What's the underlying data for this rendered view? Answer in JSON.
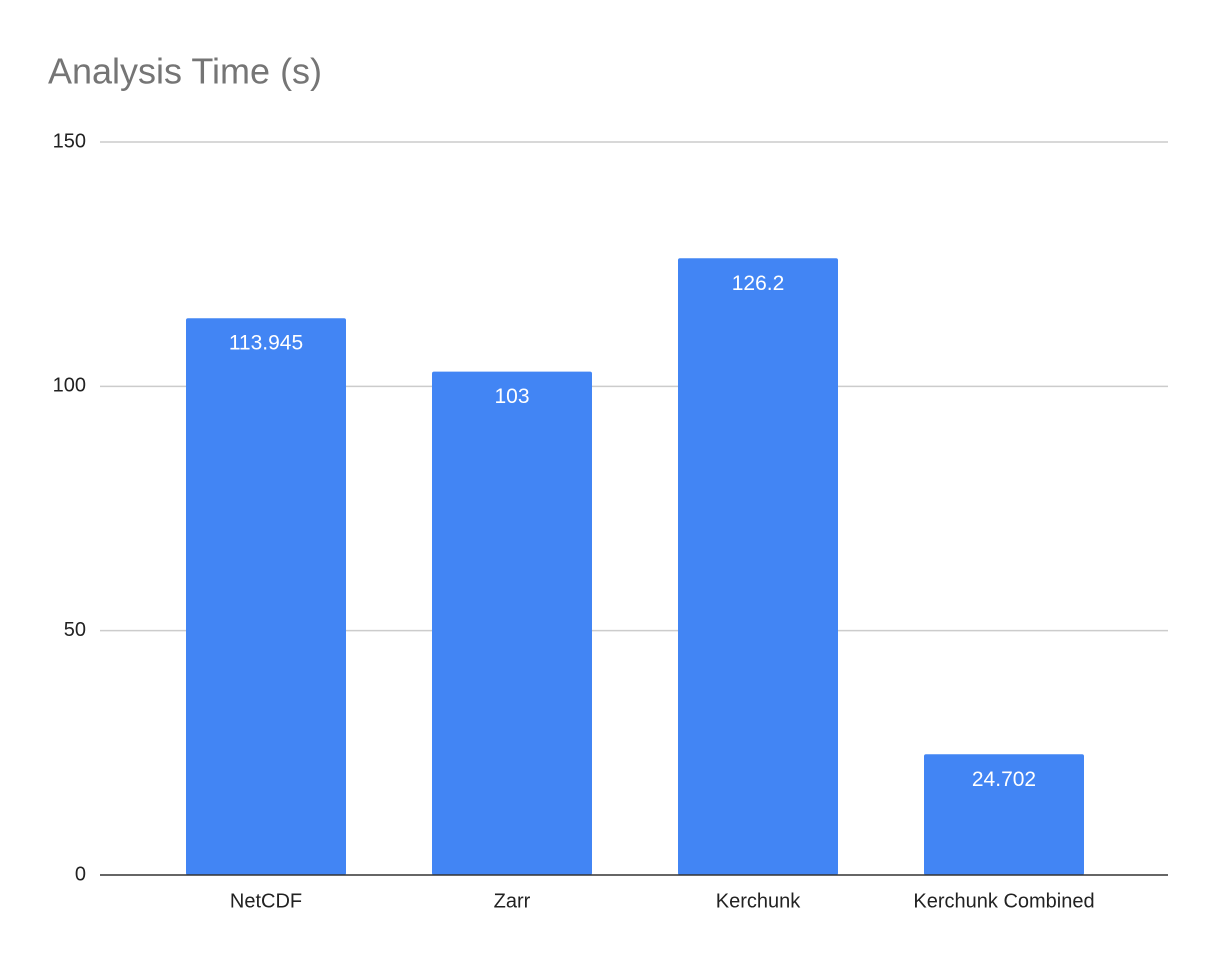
{
  "chart_data": {
    "type": "bar",
    "title": "Analysis Time (s)",
    "categories": [
      "NetCDF",
      "Zarr",
      "Kerchunk",
      "Kerchunk Combined"
    ],
    "values": [
      113.945,
      103,
      126.2,
      24.702
    ],
    "color": "#4285f4",
    "ylim": [
      0,
      150
    ],
    "yticks": [
      0,
      50,
      100,
      150
    ],
    "grid": true
  }
}
